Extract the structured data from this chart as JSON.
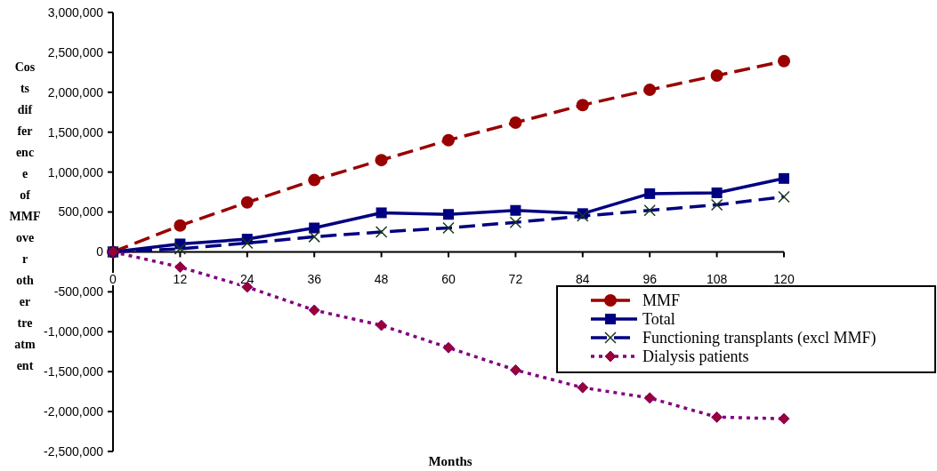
{
  "chart_data": {
    "type": "line",
    "xlabel": "Months",
    "ylabel": "Costs difference of MMF over other treatment",
    "x": [
      0,
      12,
      24,
      36,
      48,
      60,
      72,
      84,
      96,
      108,
      120
    ],
    "xlim": [
      0,
      120
    ],
    "xticks": [
      0,
      12,
      24,
      36,
      48,
      60,
      72,
      84,
      96,
      108,
      120
    ],
    "ylim": [
      -2500000,
      3000000
    ],
    "yticks": [
      {
        "value": -2500000,
        "label": "-2,500,000"
      },
      {
        "value": -2000000,
        "label": "-2,000,000"
      },
      {
        "value": -1500000,
        "label": "-1,500,000"
      },
      {
        "value": -1000000,
        "label": "-1,000,000"
      },
      {
        "value": -500000,
        "label": "-500,000"
      },
      {
        "value": 0,
        "label": "0"
      },
      {
        "value": 500000,
        "label": "500,000"
      },
      {
        "value": 1000000,
        "label": "1,000,000"
      },
      {
        "value": 1500000,
        "label": "1,500,000"
      },
      {
        "value": 2000000,
        "label": "2,000,000"
      },
      {
        "value": 2500000,
        "label": "2,500,000"
      },
      {
        "value": 3000000,
        "label": "3,000,000"
      }
    ],
    "grid": false,
    "legend": "bottom right",
    "series": [
      {
        "name": "MMF",
        "color": "#990000",
        "marker": "circle",
        "line_style": "dashed",
        "values": [
          0,
          330000,
          620000,
          900000,
          1150000,
          1400000,
          1620000,
          1840000,
          2030000,
          2210000,
          2390000
        ]
      },
      {
        "name": "Total",
        "color": "#000080",
        "marker": "square",
        "line_style": "solid",
        "values": [
          0,
          100000,
          160000,
          300000,
          490000,
          470000,
          520000,
          480000,
          730000,
          740000,
          920000
        ]
      },
      {
        "name": "Functioning transplants (excl MMF)",
        "color": "#000080",
        "marker": "cross",
        "line_style": "dashed",
        "values": [
          0,
          40000,
          110000,
          190000,
          250000,
          300000,
          370000,
          450000,
          520000,
          590000,
          690000
        ]
      },
      {
        "name": "Dialysis patients",
        "color": "#800080",
        "marker": "diamond",
        "line_style": "dotted",
        "values": [
          0,
          -190000,
          -440000,
          -730000,
          -920000,
          -1200000,
          -1480000,
          -1700000,
          -1830000,
          -2070000,
          -2090000
        ]
      }
    ]
  }
}
